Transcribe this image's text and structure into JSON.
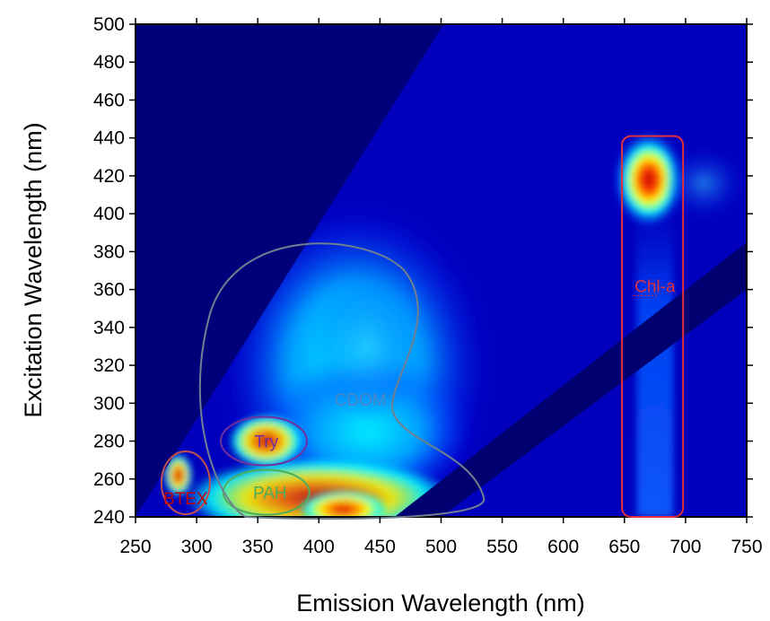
{
  "chart_data": {
    "type": "heatmap",
    "title": "",
    "xlabel": "Emission Wavelength (nm)",
    "ylabel": "Excitation Wavelength (nm)",
    "xlim": [
      250,
      750
    ],
    "ylim": [
      240,
      500
    ],
    "x_ticks": [
      250,
      300,
      350,
      400,
      450,
      500,
      550,
      600,
      650,
      700,
      750
    ],
    "y_ticks": [
      240,
      260,
      280,
      300,
      320,
      340,
      360,
      380,
      400,
      420,
      440,
      460,
      480,
      500
    ],
    "colormap": [
      "#00008b",
      "#0000ff",
      "#00ffff",
      "#ffff00",
      "#ff0000",
      "#8b0000"
    ],
    "background_color": "#00007a",
    "peaks": [
      {
        "em": 670,
        "ex": 418,
        "intensity": 1.0
      },
      {
        "em": 357,
        "ex": 280,
        "intensity": 0.9
      },
      {
        "em": 285,
        "ex": 262,
        "intensity": 0.9
      },
      {
        "em": 420,
        "ex": 244,
        "intensity": 0.95
      },
      {
        "em": 440,
        "ex": 330,
        "intensity": 0.45
      },
      {
        "em": 715,
        "ex": 416,
        "intensity": 0.35
      }
    ],
    "regions": [
      {
        "label": "BTEX",
        "color": "#c0504d",
        "label_color": "#c00000",
        "label_em": 291,
        "label_ex": 250
      },
      {
        "label": "Try",
        "color": "#7030a0",
        "label_color": "#7030a0",
        "label_em": 357,
        "label_ex": 280
      },
      {
        "label": "PAH",
        "color": "#4ead5b",
        "label_color": "#4ead5b",
        "label_em": 360,
        "label_ex": 253
      },
      {
        "label": "CDOM",
        "color": "#708090",
        "label_color": "#4a86c5",
        "label_em": 434,
        "label_ex": 302
      },
      {
        "label": "Chl-a",
        "color": "#e0303a",
        "label_color": "#e0303a",
        "label_em": 675,
        "label_ex": 362
      }
    ]
  }
}
